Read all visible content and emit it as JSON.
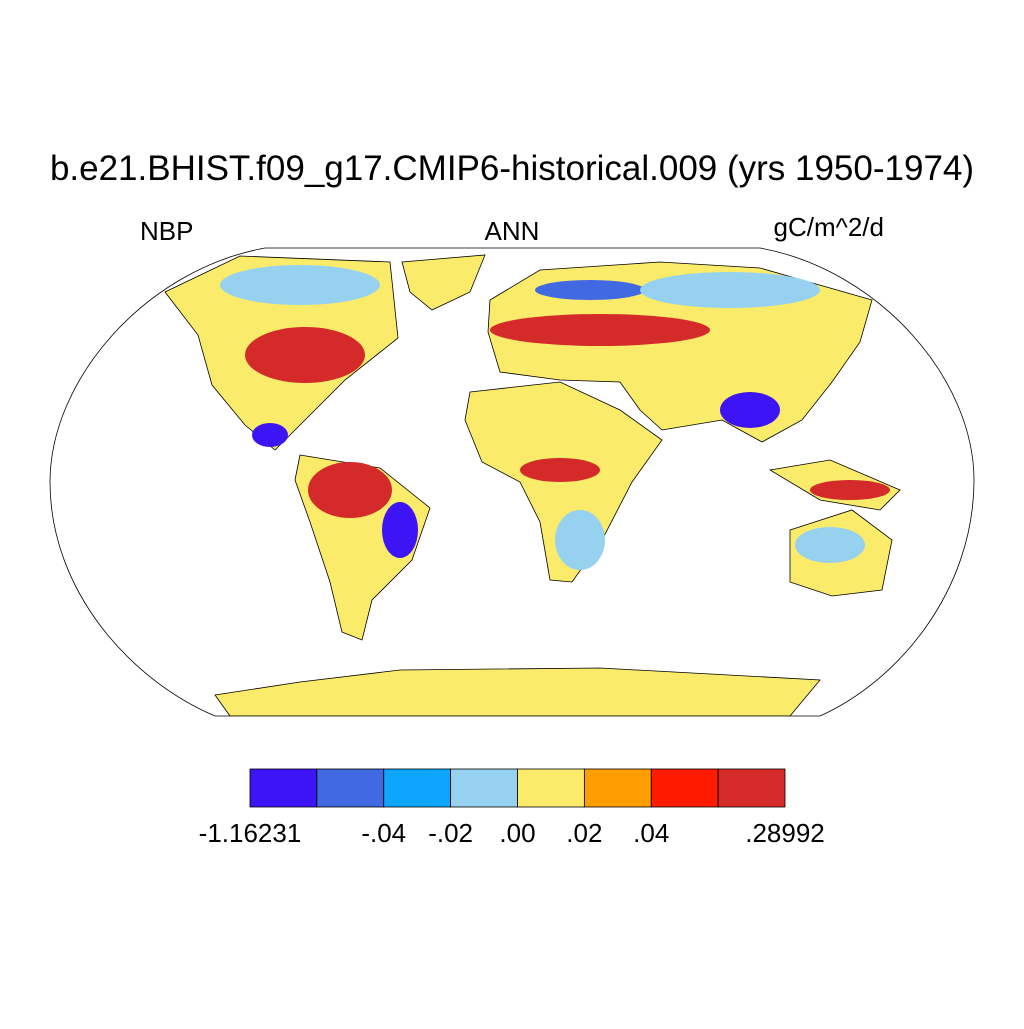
{
  "title": "b.e21.BHIST.f09_g17.CMIP6-historical.009 (yrs 1950-1974)",
  "left_label": "NBP",
  "center_label": "ANN",
  "right_label": "gC/m^2/d",
  "colorbar": {
    "colors": [
      "#3d14f5",
      "#4169e1",
      "#0ea5ff",
      "#96d2f0",
      "#fbeb6a",
      "#ff9e00",
      "#ff1a00",
      "#d42a2a"
    ],
    "boundaries": [
      "-1.16231",
      null,
      "-.04",
      "-.02",
      ".00",
      ".02",
      ".04",
      null,
      ".28992"
    ]
  }
}
